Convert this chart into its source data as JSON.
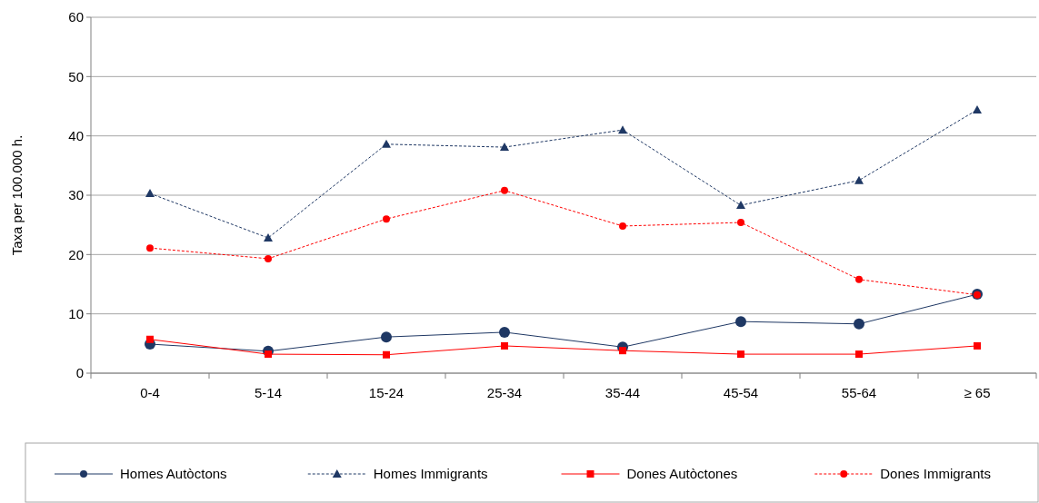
{
  "chart_data": {
    "type": "line",
    "ylabel": "Taxa per 100.000 h.",
    "categories": [
      "0-4",
      "5-14",
      "15-24",
      "25-34",
      "35-44",
      "45-54",
      "55-64",
      "≥ 65"
    ],
    "ylim": [
      0,
      60
    ],
    "yticks": [
      0,
      10,
      20,
      30,
      40,
      50,
      60
    ],
    "grid": "y",
    "legend": "bottom",
    "series": [
      {
        "name": "Homes Autòctons",
        "color": "#1f3864",
        "marker": "circle",
        "line_style": "solid",
        "values": [
          4.9,
          3.7,
          6.1,
          6.9,
          4.4,
          8.7,
          8.3,
          13.3
        ]
      },
      {
        "name": "Homes Immigrants",
        "color": "#1f3864",
        "marker": "triangle",
        "line_style": "dashed",
        "values": [
          30.3,
          22.8,
          38.6,
          38.1,
          41.0,
          28.3,
          32.5,
          44.4
        ]
      },
      {
        "name": "Dones Autòctones",
        "color": "#ff0000",
        "marker": "square",
        "line_style": "solid",
        "values": [
          5.7,
          3.2,
          3.1,
          4.6,
          3.8,
          3.2,
          3.2,
          4.6
        ]
      },
      {
        "name": "Dones Immigrants",
        "color": "#ff0000",
        "marker": "circle",
        "line_style": "dashed",
        "values": [
          21.1,
          19.3,
          26.0,
          30.8,
          24.8,
          25.4,
          15.8,
          13.2
        ]
      }
    ]
  }
}
